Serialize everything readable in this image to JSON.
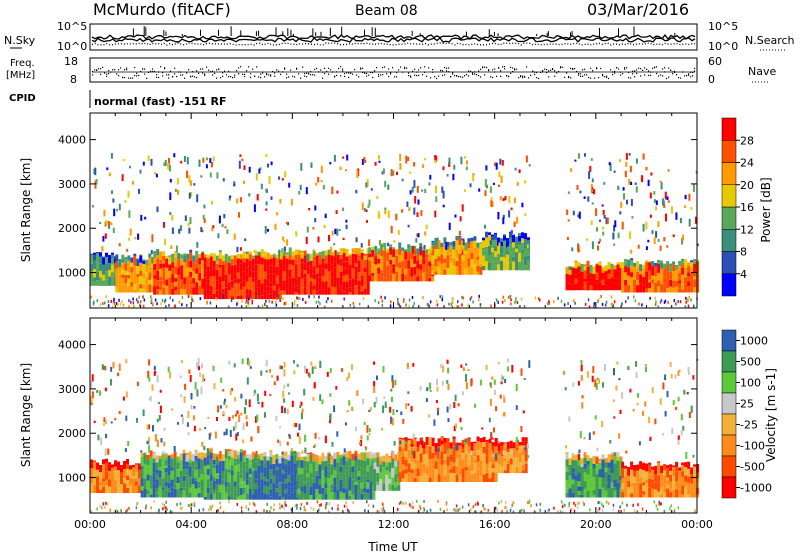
{
  "header": {
    "station": "McMurdo (fitACF)",
    "beam": "Beam 08",
    "date": "03/Mar/2016"
  },
  "left_labels": {
    "nsky": "N.Sky",
    "freq": "Freq.",
    "freq_unit": "[MHz]",
    "cpid": "CPID"
  },
  "right_labels": {
    "nsearch": "N.Search",
    "nave": "Nave"
  },
  "cpid_text": "normal (fast) -151 RF",
  "noise_ticks_left": [
    "10^5",
    "10^0"
  ],
  "noise_ticks_right": [
    "10^5",
    "10^0"
  ],
  "freq_ticks": [
    "18",
    "8"
  ],
  "nave_ticks": [
    "60",
    "0"
  ],
  "colors": {
    "power_scale": [
      "#0000ff",
      "#2a4fb5",
      "#3b8f7a",
      "#5aa85a",
      "#e8c800",
      "#ff9a00",
      "#ff5000",
      "#ff0000"
    ],
    "velocity_scale": [
      "#ff0000",
      "#ff4a00",
      "#ff8c1a",
      "#f2b23a",
      "#c8c8c8",
      "#5cc83a",
      "#3f9a55",
      "#2e5fb0"
    ]
  },
  "power_colorbar": {
    "label": "Power [dB]",
    "ticks": [
      "4",
      "8",
      "12",
      "16",
      "20",
      "24",
      "28"
    ]
  },
  "velocity_colorbar": {
    "label": "Velocity [m s-1]",
    "ticks": [
      "1000",
      "500",
      "100",
      "25",
      "-25",
      "-100",
      "-500",
      "-1000"
    ]
  },
  "chart_data": [
    {
      "type": "heatmap",
      "panel": "power",
      "ylabel": "Slant Range [km]",
      "xlabel": "",
      "x_range": [
        0,
        24
      ],
      "ylim": [
        200,
        4600
      ],
      "yticks": [
        "1000",
        "2000",
        "3000",
        "4000"
      ],
      "bands": [
        {
          "start": 0.0,
          "end": 1.0,
          "low": 700,
          "high": 1400,
          "level": 3
        },
        {
          "start": 1.0,
          "end": 2.5,
          "low": 550,
          "high": 1350,
          "level": 5
        },
        {
          "start": 2.5,
          "end": 4.5,
          "low": 500,
          "high": 1450,
          "level": 6
        },
        {
          "start": 4.5,
          "end": 7.5,
          "low": 400,
          "high": 1450,
          "level": 7
        },
        {
          "start": 7.5,
          "end": 11.0,
          "low": 500,
          "high": 1500,
          "level": 7
        },
        {
          "start": 11.0,
          "end": 13.5,
          "low": 800,
          "high": 1600,
          "level": 6
        },
        {
          "start": 13.5,
          "end": 15.5,
          "low": 950,
          "high": 1750,
          "level": 5
        },
        {
          "start": 15.5,
          "end": 17.3,
          "low": 1050,
          "high": 1850,
          "level": 3
        },
        {
          "start": 18.8,
          "end": 21.0,
          "low": 600,
          "high": 1200,
          "level": 7
        },
        {
          "start": 21.0,
          "end": 24.0,
          "low": 550,
          "high": 1250,
          "level": 6
        }
      ]
    },
    {
      "type": "heatmap",
      "panel": "velocity",
      "ylabel": "Slant Range [km]",
      "xlabel": "Time UT",
      "x_range": [
        0,
        24
      ],
      "ylim": [
        200,
        4600
      ],
      "yticks": [
        "1000",
        "2000",
        "3000",
        "4000"
      ],
      "xticks": [
        "00:00",
        "04:00",
        "08:00",
        "12:00",
        "16:00",
        "20:00",
        "00:00"
      ],
      "bands": [
        {
          "start": 0.0,
          "end": 2.0,
          "low": 650,
          "high": 1350,
          "level": 2
        },
        {
          "start": 2.0,
          "end": 4.5,
          "low": 550,
          "high": 1550,
          "level": 6
        },
        {
          "start": 4.5,
          "end": 6.5,
          "low": 500,
          "high": 1600,
          "level": 6
        },
        {
          "start": 6.5,
          "end": 8.2,
          "low": 500,
          "high": 1550,
          "level": 7
        },
        {
          "start": 8.2,
          "end": 11.2,
          "low": 500,
          "high": 1550,
          "level": 6
        },
        {
          "start": 11.2,
          "end": 12.2,
          "low": 700,
          "high": 1550,
          "level": 5
        },
        {
          "start": 12.2,
          "end": 16.0,
          "low": 900,
          "high": 1850,
          "level": 2
        },
        {
          "start": 16.0,
          "end": 17.3,
          "low": 1100,
          "high": 1850,
          "level": 2
        },
        {
          "start": 18.8,
          "end": 21.0,
          "low": 550,
          "high": 1500,
          "level": 6
        },
        {
          "start": 21.0,
          "end": 24.0,
          "low": 550,
          "high": 1300,
          "level": 2
        }
      ]
    }
  ]
}
